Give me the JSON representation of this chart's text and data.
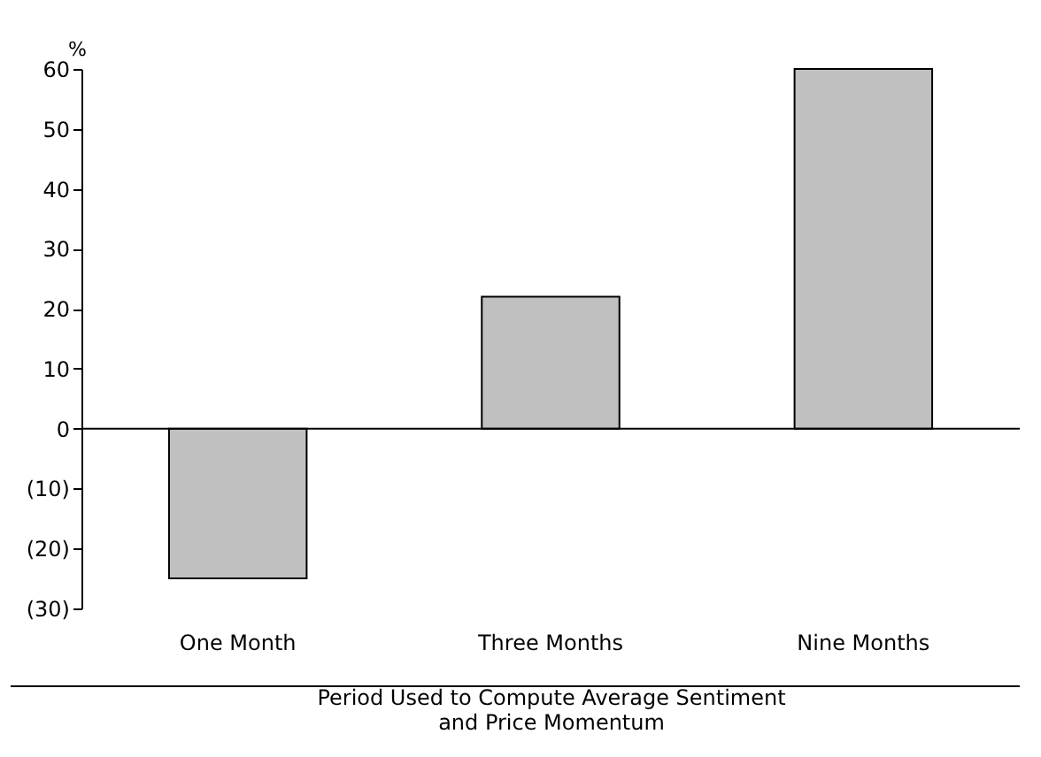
{
  "chart_data": {
    "type": "bar",
    "categories": [
      "One Month",
      "Three Months",
      "Nine Months"
    ],
    "values": [
      -25,
      22,
      60
    ],
    "color": "#c0c0c0",
    "ylabel": "%",
    "xlabel": "Period Used to Compute Average Sentiment\nand Price Momentum",
    "ylim": [
      -30,
      60
    ],
    "yticks": [
      {
        "value": -30,
        "label": "(30)"
      },
      {
        "value": -20,
        "label": "(20)"
      },
      {
        "value": -10,
        "label": "(10)"
      },
      0,
      10,
      20,
      30,
      40,
      50,
      60
    ],
    "ref_lines": [
      {
        "axis": "y",
        "value": 0
      }
    ],
    "grid": false
  }
}
